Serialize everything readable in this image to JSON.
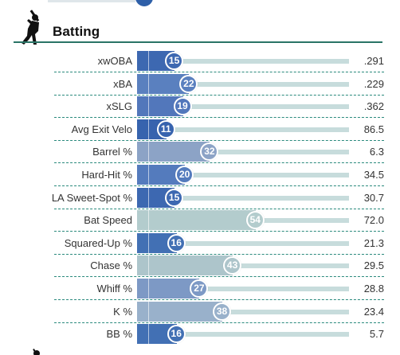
{
  "section": {
    "title": "Batting",
    "icon": "batter-silhouette-icon"
  },
  "colors": {
    "accent_rule": "#2a7466",
    "separator": "#2a8a7d",
    "track": "#c7dcdc"
  },
  "metrics": [
    {
      "label": "xwOBA",
      "percentile": 15,
      "value": ".291",
      "color": "#3d68b1"
    },
    {
      "label": "xBA",
      "percentile": 22,
      "value": ".229",
      "color": "#5a80bf"
    },
    {
      "label": "xSLG",
      "percentile": 19,
      "value": ".362",
      "color": "#5277bb"
    },
    {
      "label": "Avg Exit Velo",
      "percentile": 11,
      "value": "86.5",
      "color": "#3763ae"
    },
    {
      "label": "Barrel %",
      "percentile": 32,
      "value": "6.3",
      "color": "#8ca3c6"
    },
    {
      "label": "Hard-Hit %",
      "percentile": 20,
      "value": "34.5",
      "color": "#547bbd"
    },
    {
      "label": "LA Sweet-Spot %",
      "percentile": 15,
      "value": "30.7",
      "color": "#3d68b1"
    },
    {
      "label": "Bat Speed",
      "percentile": 54,
      "value": "72.0",
      "color": "#b3cccd"
    },
    {
      "label": "Squared-Up %",
      "percentile": 16,
      "value": "21.3",
      "color": "#4270b4"
    },
    {
      "label": "Chase %",
      "percentile": 43,
      "value": "29.5",
      "color": "#adc5cb"
    },
    {
      "label": "Whiff %",
      "percentile": 27,
      "value": "28.8",
      "color": "#7d99c5"
    },
    {
      "label": "K %",
      "percentile": 38,
      "value": "23.4",
      "color": "#99b1cb"
    },
    {
      "label": "BB %",
      "percentile": 16,
      "value": "5.7",
      "color": "#4270b4"
    }
  ]
}
